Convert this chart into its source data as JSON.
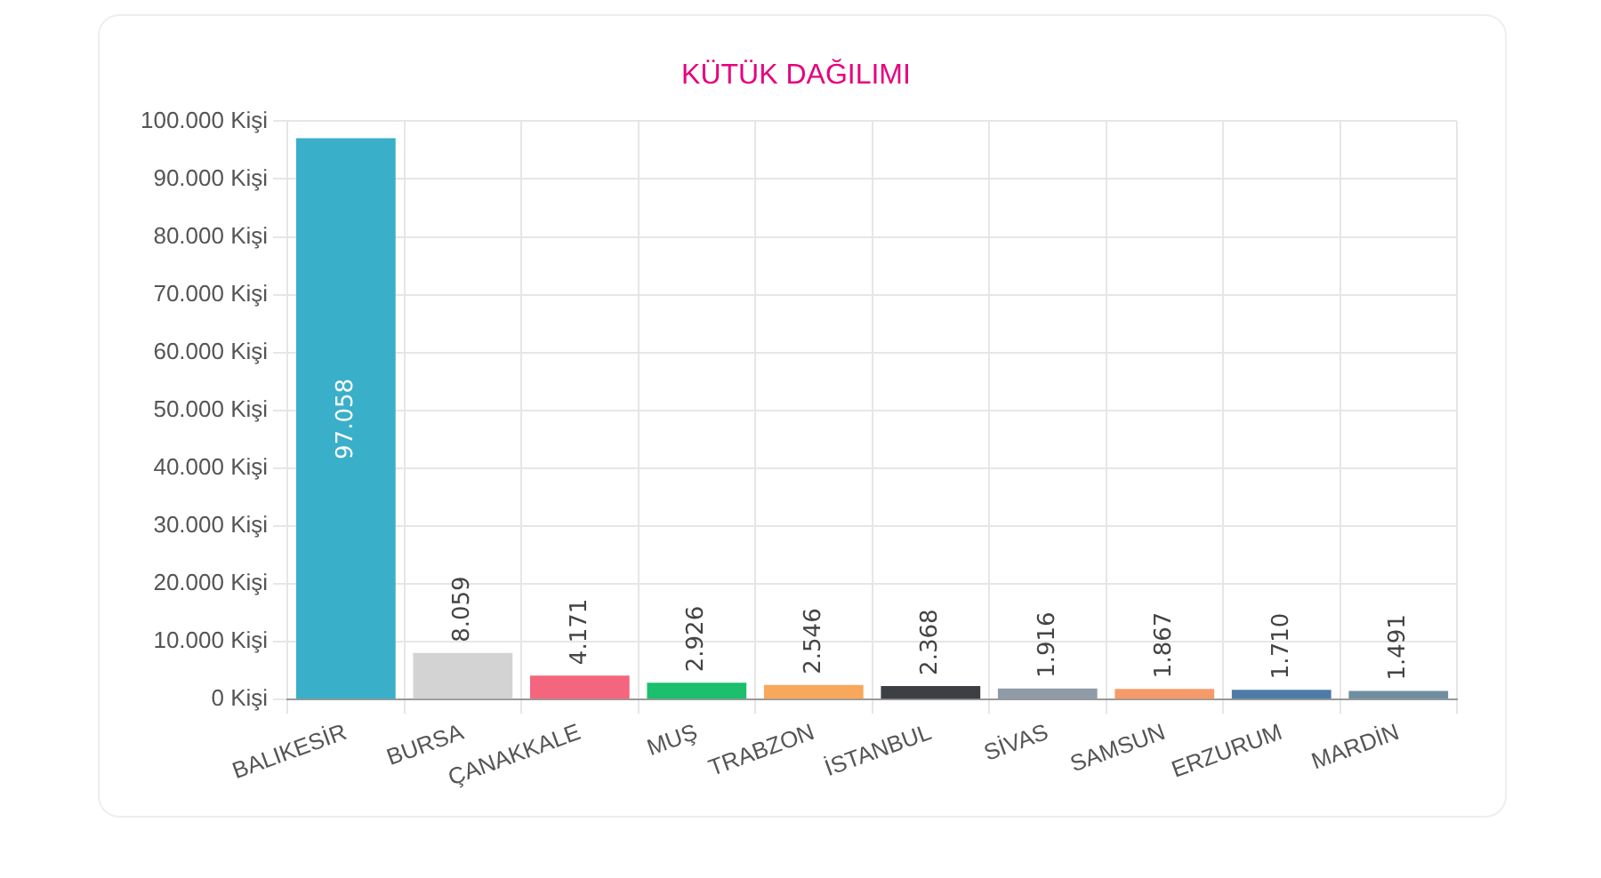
{
  "chart_data": {
    "type": "bar",
    "title": "KÜTÜK DAĞILIMI",
    "categories": [
      "BALIKESİR",
      "BURSA",
      "ÇANAKKALE",
      "MUŞ",
      "TRABZON",
      "İSTANBUL",
      "SİVAS",
      "SAMSUN",
      "ERZURUM",
      "MARDİN"
    ],
    "values": [
      97058,
      8059,
      4171,
      2926,
      2546,
      2368,
      1916,
      1867,
      1710,
      1491
    ],
    "value_labels": [
      "97.058",
      "8.059",
      "4.171",
      "2.926",
      "2.546",
      "2.368",
      "1.916",
      "1.867",
      "1.710",
      "1.491"
    ],
    "colors": [
      "#3aafc9",
      "#d3d3d3",
      "#f4657e",
      "#1cbf6e",
      "#f7a85c",
      "#3d3f45",
      "#8f9ba6",
      "#f79a6a",
      "#4e7aa8",
      "#6f8fa0"
    ],
    "ylim": [
      0,
      100000
    ],
    "yticks": [
      {
        "value": 0,
        "label": "0 Kişi"
      },
      {
        "value": 10000,
        "label": "10.000 Kişi"
      },
      {
        "value": 20000,
        "label": "20.000 Kişi"
      },
      {
        "value": 30000,
        "label": "30.000 Kişi"
      },
      {
        "value": 40000,
        "label": "40.000 Kişi"
      },
      {
        "value": 50000,
        "label": "50.000 Kişi"
      },
      {
        "value": 60000,
        "label": "60.000 Kişi"
      },
      {
        "value": 70000,
        "label": "70.000 Kişi"
      },
      {
        "value": 80000,
        "label": "80.000 Kişi"
      },
      {
        "value": 90000,
        "label": "90.000 Kişi"
      },
      {
        "value": 100000,
        "label": "100.000 Kişi"
      }
    ],
    "grid": true
  }
}
